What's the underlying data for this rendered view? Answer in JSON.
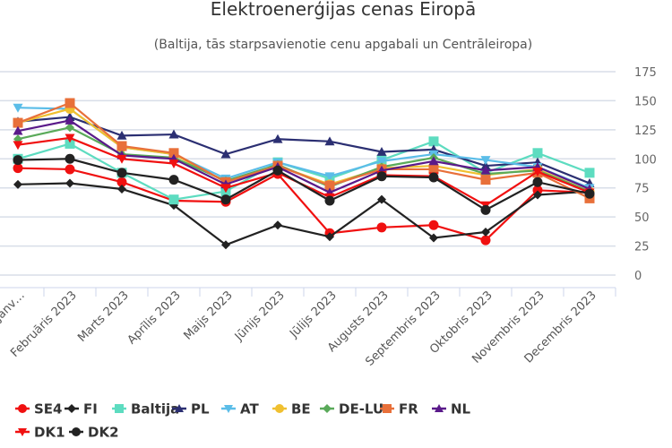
{
  "chart_data": {
    "type": "line",
    "title": "Elektroenerģijas cenas Eiropā",
    "subtitle": "(Baltija, tās starpsavienotie cenu apgabali un Centrāleiropa)",
    "xlabel": "",
    "ylabel": "",
    "ylim": [
      0,
      175
    ],
    "yticks": [
      0,
      25,
      50,
      75,
      100,
      125,
      150,
      175
    ],
    "y_axis_side": "right",
    "grid": true,
    "legend_position": "bottom",
    "categories": [
      "Janv…",
      "Februāris 2023",
      "Marts 2023",
      "Aprīlis 2023",
      "Maijs 2023",
      "Jūnijs 2023",
      "Jūlijs 2023",
      "Augusts 2023",
      "Septembris 2023",
      "Oktobris 2023",
      "Novembris 2023",
      "Decembris 2023"
    ],
    "series": [
      {
        "name": "SE4",
        "color": "#f01010",
        "marker": "circle",
        "values": [
          92,
          91,
          80,
          64,
          63,
          87,
          36,
          41,
          43,
          30,
          73,
          71
        ]
      },
      {
        "name": "FI",
        "color": "#222222",
        "marker": "diamond",
        "values": [
          78,
          79,
          74,
          60,
          26,
          43,
          33,
          65,
          32,
          37,
          69,
          72
        ]
      },
      {
        "name": "Baltija",
        "color": "#5ddcc0",
        "marker": "square",
        "values": [
          100,
          113,
          88,
          65,
          72,
          97,
          83,
          99,
          115,
          88,
          105,
          88
        ]
      },
      {
        "name": "PL",
        "color": "#2b2f72",
        "marker": "triangle-up",
        "values": [
          132,
          136,
          120,
          121,
          104,
          117,
          115,
          106,
          108,
          94,
          97,
          79
        ]
      },
      {
        "name": "AT",
        "color": "#5bbde8",
        "marker": "triangle-down",
        "values": [
          144,
          143,
          110,
          104,
          83,
          97,
          85,
          98,
          104,
          99,
          93,
          75
        ]
      },
      {
        "name": "BE",
        "color": "#f0c030",
        "marker": "circle",
        "values": [
          131,
          143,
          110,
          104,
          80,
          94,
          78,
          92,
          94,
          86,
          91,
          72
        ]
      },
      {
        "name": "DE-LU",
        "color": "#5aaa5a",
        "marker": "diamond",
        "values": [
          117,
          127,
          104,
          101,
          81,
          95,
          76,
          93,
          101,
          87,
          90,
          72
        ]
      },
      {
        "name": "FR",
        "color": "#e8703a",
        "marker": "square",
        "values": [
          131,
          148,
          111,
          105,
          80,
          94,
          77,
          91,
          91,
          82,
          88,
          66
        ]
      },
      {
        "name": "NL",
        "color": "#5a1a8a",
        "marker": "triangle-up",
        "values": [
          124,
          133,
          103,
          100,
          78,
          93,
          71,
          90,
          98,
          90,
          93,
          74
        ]
      },
      {
        "name": "DK1",
        "color": "#f01010",
        "marker": "triangle-down",
        "values": [
          112,
          118,
          100,
          96,
          75,
          88,
          67,
          86,
          85,
          60,
          89,
          71
        ]
      },
      {
        "name": "DK2",
        "color": "#222222",
        "marker": "circle",
        "values": [
          99,
          100,
          88,
          82,
          65,
          90,
          64,
          85,
          84,
          56,
          80,
          70
        ]
      }
    ]
  }
}
